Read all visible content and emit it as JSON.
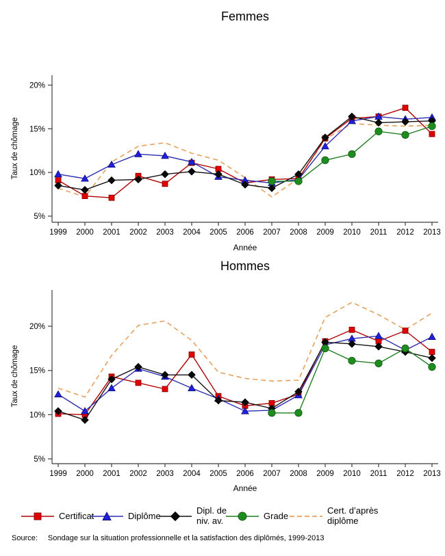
{
  "page": {
    "source_label": "Source:",
    "source_text": "Sondage sur la situation professionnelle et la satisfaction des diplômés, 1999-2013"
  },
  "legend": {
    "position": "bottom",
    "items": [
      {
        "id": "certificat",
        "series": "Certificat",
        "label1": "Certificat",
        "label2": "",
        "marker": "square",
        "dashed": false,
        "line_color": "#b00000",
        "marker_color": "#e30000",
        "marker_stroke": "#7d0000"
      },
      {
        "id": "diplome",
        "series": "Diplôme",
        "label1": "Diplôme",
        "label2": "",
        "marker": "triangle",
        "dashed": false,
        "line_color": "#2b2bb4",
        "marker_color": "#1f1fdc",
        "marker_stroke": "#10107a"
      },
      {
        "id": "dipl-niv-av",
        "series": "Dipl. de niv. av.",
        "label1": "Dipl. de",
        "label2": "niv. av.",
        "marker": "diamond",
        "dashed": false,
        "line_color": "#111111",
        "marker_color": "#0a0a0a",
        "marker_stroke": "#000000"
      },
      {
        "id": "grade",
        "series": "Grade",
        "label1": "Grade",
        "label2": "",
        "marker": "circle",
        "dashed": false,
        "line_color": "#1e7d1e",
        "marker_color": "#1e8c1e",
        "marker_stroke": "#0f5a0f"
      },
      {
        "id": "cert-apres-diplome",
        "series": "Cert. d'après diplôme",
        "label1": "Cert. d’après",
        "label2": "diplôme",
        "marker": "none",
        "dashed": true,
        "line_color": "#e6a05c",
        "marker_color": "#e6a05c",
        "marker_stroke": "#e6a05c"
      }
    ]
  },
  "chart_data": [
    {
      "type": "line",
      "title": "Femmes",
      "xlabel": "Année",
      "ylabel": "Taux de chômage",
      "x": [
        1999,
        2000,
        2001,
        2002,
        2003,
        2004,
        2005,
        2006,
        2007,
        2008,
        2009,
        2010,
        2011,
        2012,
        2013
      ],
      "ytick_values": [
        5,
        10,
        15,
        20
      ],
      "ytick_labels": [
        "5%",
        "10%",
        "15%",
        "20%"
      ],
      "ylim": [
        4.3,
        21.2
      ],
      "grid": false,
      "legend_position": "bottom",
      "series": [
        {
          "name": "Certificat",
          "values": [
            9.1,
            7.3,
            7.1,
            9.6,
            8.7,
            11.1,
            10.4,
            8.8,
            9.2,
            9.3,
            13.9,
            16.2,
            16.4,
            17.4,
            14.4
          ]
        },
        {
          "name": "Diplôme",
          "values": [
            9.8,
            9.3,
            10.9,
            12.1,
            11.9,
            11.2,
            9.5,
            9.1,
            8.8,
            9.2,
            13.0,
            15.9,
            16.4,
            16.1,
            16.3
          ]
        },
        {
          "name": "Dipl. de niv. av.",
          "values": [
            8.5,
            8.0,
            9.1,
            9.2,
            9.8,
            10.1,
            9.8,
            8.6,
            8.2,
            9.8,
            14.0,
            16.4,
            15.7,
            15.8,
            15.9
          ]
        },
        {
          "name": "Grade",
          "values": [
            null,
            null,
            null,
            null,
            null,
            null,
            null,
            null,
            9.0,
            9.0,
            11.4,
            12.1,
            14.7,
            14.3,
            15.3
          ]
        },
        {
          "name": "Cert. d'après diplôme",
          "values": [
            8.2,
            7.2,
            11.2,
            13.0,
            13.4,
            12.2,
            11.4,
            9.4,
            7.2,
            9.3,
            13.8,
            15.6,
            15.4,
            15.3,
            15.4
          ]
        }
      ]
    },
    {
      "type": "line",
      "title": "Hommes",
      "xlabel": "Année",
      "ylabel": "Taux de chômage",
      "x": [
        1999,
        2000,
        2001,
        2002,
        2003,
        2004,
        2005,
        2006,
        2007,
        2008,
        2009,
        2010,
        2011,
        2012,
        2013
      ],
      "ytick_values": [
        5,
        10,
        15,
        20
      ],
      "ytick_labels": [
        "5%",
        "10%",
        "15%",
        "20%"
      ],
      "ylim": [
        4.4,
        24.1
      ],
      "grid": false,
      "legend_position": "bottom",
      "series": [
        {
          "name": "Certificat",
          "values": [
            10.1,
            10.0,
            14.3,
            13.6,
            12.9,
            16.8,
            12.1,
            11.0,
            11.3,
            12.3,
            18.3,
            19.6,
            18.3,
            19.5,
            17.1
          ]
        },
        {
          "name": "Diplôme",
          "values": [
            12.3,
            10.4,
            13.0,
            15.2,
            14.3,
            13.0,
            11.8,
            10.4,
            10.5,
            12.2,
            17.9,
            18.6,
            18.9,
            17.3,
            18.8
          ]
        },
        {
          "name": "Dipl. de niv. av.",
          "values": [
            10.4,
            9.4,
            14.0,
            15.4,
            14.5,
            14.5,
            11.6,
            11.4,
            10.7,
            12.6,
            18.2,
            18.0,
            17.7,
            17.1,
            16.4
          ]
        },
        {
          "name": "Grade",
          "values": [
            null,
            null,
            null,
            null,
            null,
            null,
            null,
            null,
            10.2,
            10.2,
            17.5,
            16.1,
            15.8,
            17.5,
            15.4
          ]
        },
        {
          "name": "Cert. d'après diplôme",
          "values": [
            13.0,
            12.0,
            16.7,
            20.1,
            20.6,
            18.4,
            14.8,
            14.1,
            13.8,
            13.9,
            21.0,
            22.7,
            21.3,
            19.6,
            21.5
          ]
        }
      ]
    }
  ]
}
